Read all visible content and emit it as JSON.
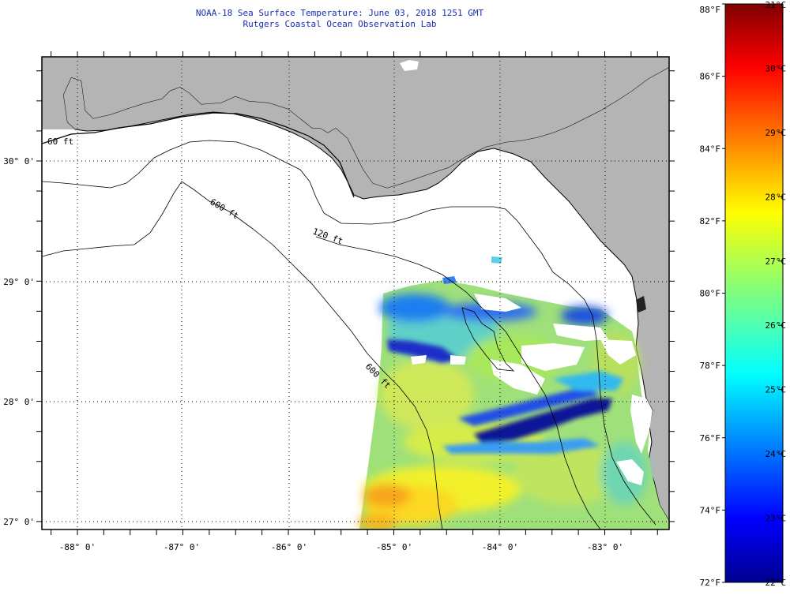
{
  "header": {
    "title": "NOAA-18 Sea Surface Temperature:  June 03, 2018 1251 GMT",
    "subtitle": "Rutgers Coastal Ocean Observation Lab"
  },
  "map": {
    "lon_labels": [
      "-88° 0'",
      "-87° 0'",
      "-86° 0'",
      "-85° 0'",
      "-84° 0'",
      "-83° 0'"
    ],
    "lat_labels": [
      "30° 0'",
      "29° 0'",
      "28° 0'",
      "27° 0'"
    ],
    "contour_labels": [
      "60 ft",
      "120 ft",
      "600 ft",
      "600 ft"
    ],
    "colors": {
      "land": "#b4b4b4",
      "ocean_no_data": "#ffffff",
      "title": "#1a2fb0"
    }
  },
  "colorbar": {
    "fahrenheit": [
      "88°F",
      "86°F",
      "84°F",
      "82°F",
      "80°F",
      "78°F",
      "76°F",
      "74°F",
      "72°F"
    ],
    "celsius": [
      "31°C",
      "30°C",
      "29°C",
      "28°C",
      "27°C",
      "26°C",
      "25°C",
      "24°C",
      "23°C",
      "22°C"
    ],
    "range_c": [
      22,
      31
    ],
    "palette": "jet"
  }
}
